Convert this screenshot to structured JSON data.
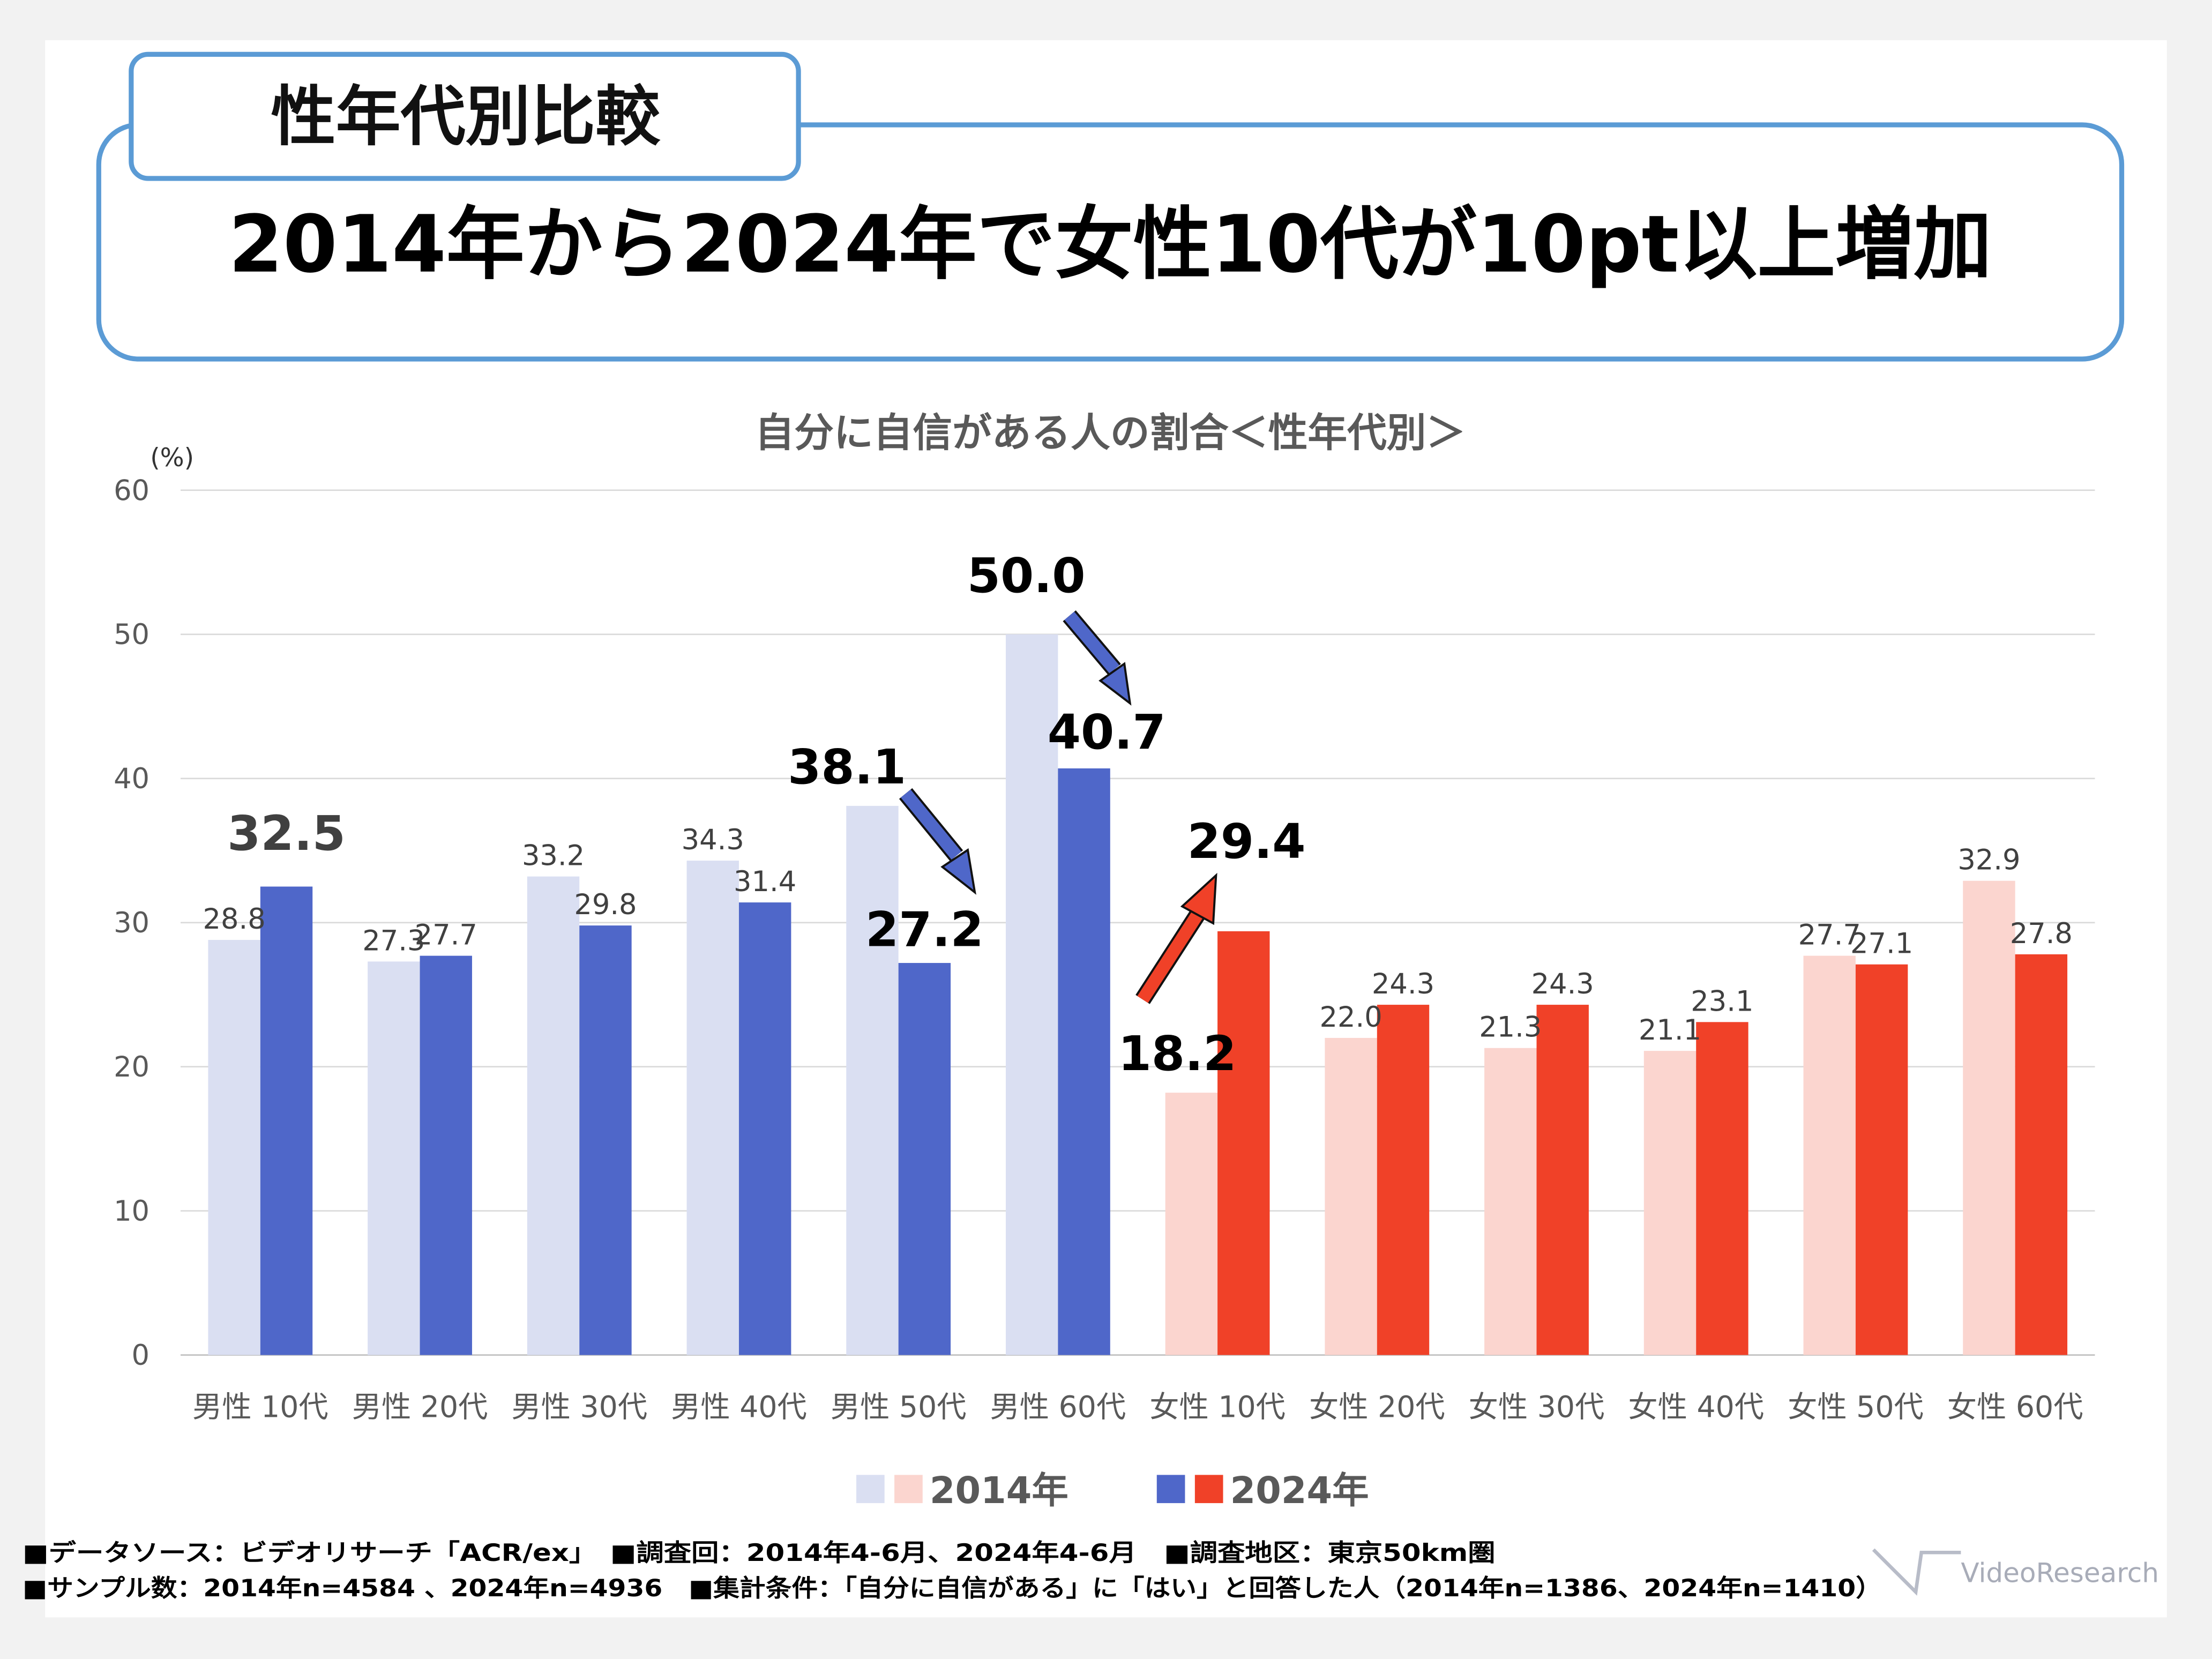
{
  "tab_label": "性年代別比較",
  "headline": "2014年から2024年で女性10代が10pt以上増加",
  "colors": {
    "male_2014": "#dadff2",
    "male_2024": "#4f67c9",
    "female_2014": "#fbd5cf",
    "female_2024": "#f04128",
    "frame": "#5b9bd5"
  },
  "chart_data": {
    "type": "bar",
    "title": "自分に自信がある人の割合＜性年代別＞",
    "ylabel": "(%)",
    "ylim": [
      0,
      60
    ],
    "yticks": [
      "0",
      "10",
      "20",
      "30",
      "40",
      "50",
      "60"
    ],
    "grid": true,
    "legend_placement": "bottom",
    "categories": [
      "男性 10代",
      "男性 20代",
      "男性 30代",
      "男性 40代",
      "男性 50代",
      "男性 60代",
      "女性 10代",
      "女性 20代",
      "女性 30代",
      "女性 40代",
      "女性 50代",
      "女性 60代"
    ],
    "series": [
      {
        "name": "2014年",
        "values": [
          28.8,
          27.3,
          33.2,
          34.3,
          38.1,
          50.0,
          18.2,
          22.0,
          21.3,
          21.1,
          27.7,
          32.9
        ],
        "labels": [
          "28.8",
          "27.3",
          "33.2",
          "34.3",
          "38.1",
          "50.0",
          "18.2",
          "22.0",
          "21.3",
          "21.1",
          "27.7",
          "32.9"
        ]
      },
      {
        "name": "2024年",
        "values": [
          32.5,
          27.7,
          29.8,
          31.4,
          27.2,
          40.7,
          29.4,
          24.3,
          24.3,
          23.1,
          27.1,
          27.8
        ],
        "labels": [
          "32.5",
          "27.7",
          "29.8",
          "31.4",
          "27.2",
          "40.7",
          "29.4",
          "24.3",
          "24.3",
          "23.1",
          "27.1",
          "27.8"
        ]
      }
    ],
    "highlighted_labels": [
      "2024年:男性 10代",
      "2014年:男性 50代",
      "2024年:男性 50代",
      "2014年:男性 60代",
      "2024年:男性 60代",
      "2014年:女性 10代",
      "2024年:女性 10代"
    ],
    "annotations": [
      "arrow 38.1 → 27.2 (down)",
      "arrow 50.0 → 40.7 (down)",
      "arrow 18.2 → 29.4 (up)"
    ]
  },
  "footer": {
    "line1": "■データソース：ビデオリサーチ「ACR/ex」　■調査回：2014年4-6月、2024年4-6月　■調査地区：東京50km圏",
    "line2": "■サンプル数：2014年n=4584 、2024年n=4936　■集計条件：「自分に自信がある」に「はい」と回答した人（2014年n=1386、2024年n=1410）"
  },
  "logo_text": "VideoResearch"
}
